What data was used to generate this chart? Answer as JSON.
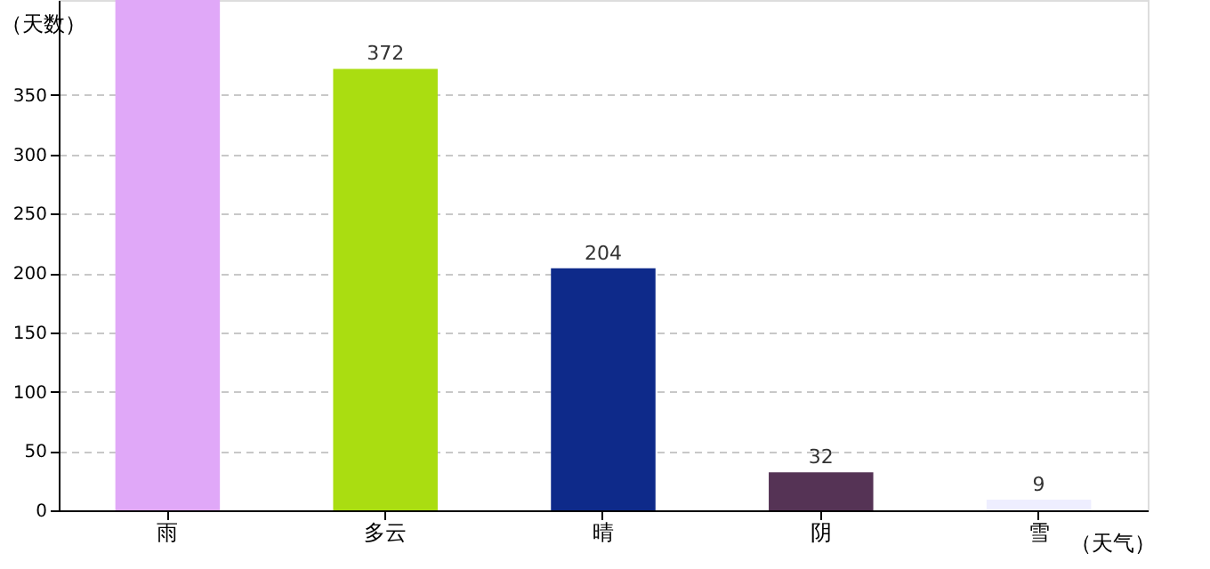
{
  "chart_data": {
    "type": "bar",
    "xlabel": "（天气）",
    "ylabel": "（天数）",
    "categories": [
      "雨",
      "多云",
      "晴",
      "阴",
      "雪"
    ],
    "values": [
      430,
      372,
      204,
      32,
      9
    ],
    "colors": [
      "#e0a8f8",
      "#aadd11",
      "#0e2a8a",
      "#553355",
      "#eeeeff"
    ],
    "value_labels": [
      null,
      "372",
      "204",
      "32",
      "9"
    ],
    "ylim": [
      0,
      430
    ],
    "yticks": [
      0,
      50,
      100,
      150,
      200,
      250,
      300,
      350
    ],
    "grid": "y"
  }
}
